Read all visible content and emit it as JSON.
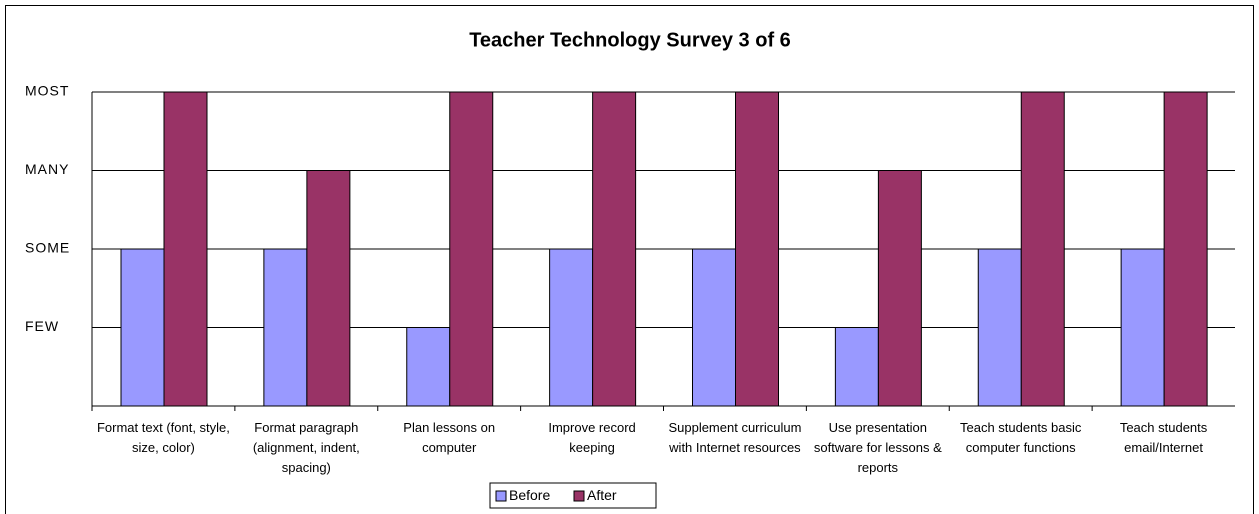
{
  "chart_data": {
    "type": "bar",
    "title": "Teacher Technology Survey 3 of 6",
    "categories": [
      "Format text (font, style, size, color)",
      "Format paragraph (alignment, indent, spacing)",
      "Plan lessons on computer",
      "Improve record keeping",
      "Supplement curriculum with Internet resources",
      "Use presentation software for lessons & reports",
      "Teach students basic computer functions",
      "Teach students email/Internet"
    ],
    "series": [
      {
        "name": "Before",
        "color": "#9999ff",
        "values": [
          2,
          2,
          1,
          2,
          2,
          1,
          2,
          2
        ]
      },
      {
        "name": "After",
        "color": "#993366",
        "values": [
          4,
          3,
          4,
          4,
          4,
          3,
          4,
          4
        ]
      }
    ],
    "ylim": [
      0,
      4
    ],
    "yticks": [
      {
        "value": 1,
        "label": "FEW"
      },
      {
        "value": 2,
        "label": "SOME"
      },
      {
        "value": 3,
        "label": "MANY"
      },
      {
        "value": 4,
        "label": "MOST"
      }
    ],
    "grid": true,
    "legend": "bottom"
  }
}
